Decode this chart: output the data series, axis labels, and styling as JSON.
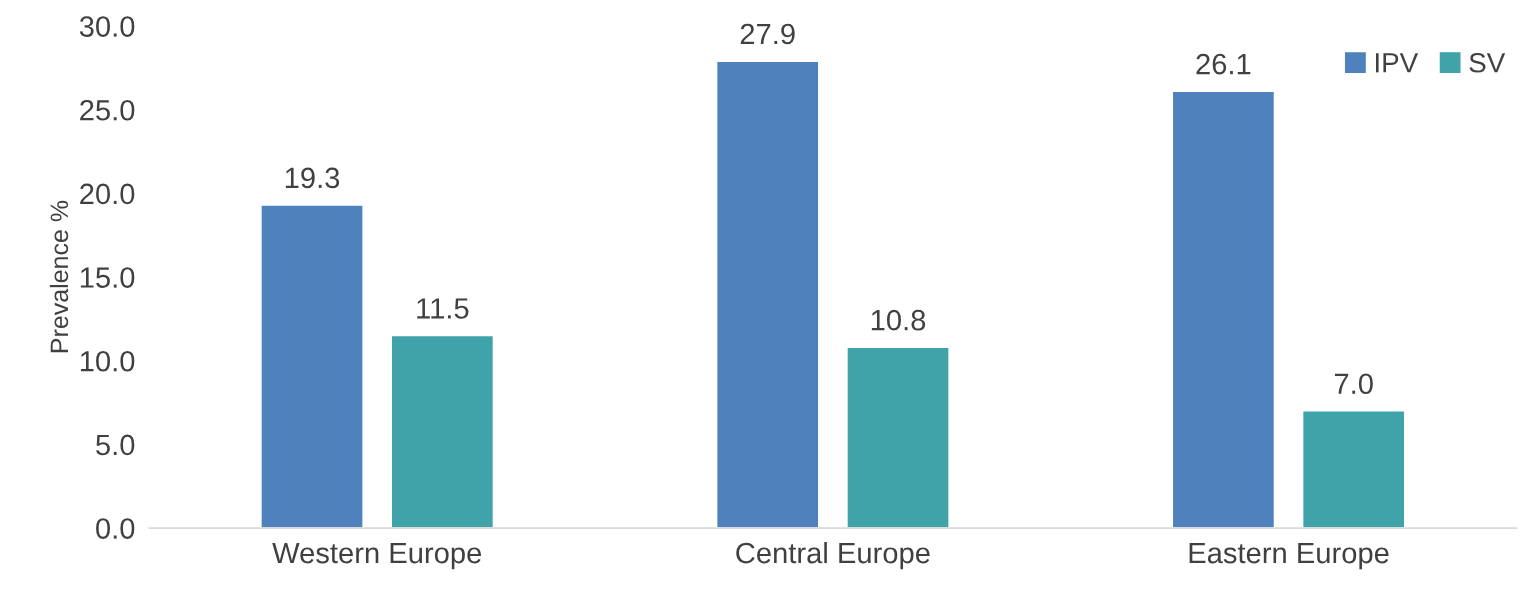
{
  "chart_data": {
    "type": "bar",
    "ylabel": "Prevalence %",
    "categories": [
      "Western Europe",
      "Central Europe",
      "Eastern Europe"
    ],
    "series": [
      {
        "name": "IPV",
        "color": "#4f81bd",
        "values": [
          19.3,
          27.9,
          26.1
        ]
      },
      {
        "name": "SV",
        "color": "#41a3aa",
        "values": [
          11.5,
          10.8,
          7.0
        ]
      }
    ],
    "ylim": [
      0,
      30
    ],
    "yticks": [
      {
        "value": 0,
        "label": "0.0"
      },
      {
        "value": 5,
        "label": "5.0"
      },
      {
        "value": 10,
        "label": "10.0"
      },
      {
        "value": 15,
        "label": "15.0"
      },
      {
        "value": 20,
        "label": "20.0"
      },
      {
        "value": 25,
        "label": "25.0"
      },
      {
        "value": 30,
        "label": "30.0"
      }
    ],
    "value_labels": [
      [
        "19.3",
        "27.9",
        "26.1"
      ],
      [
        "11.5",
        "10.8",
        "7.0"
      ]
    ],
    "legend": "top right",
    "grid": false
  }
}
